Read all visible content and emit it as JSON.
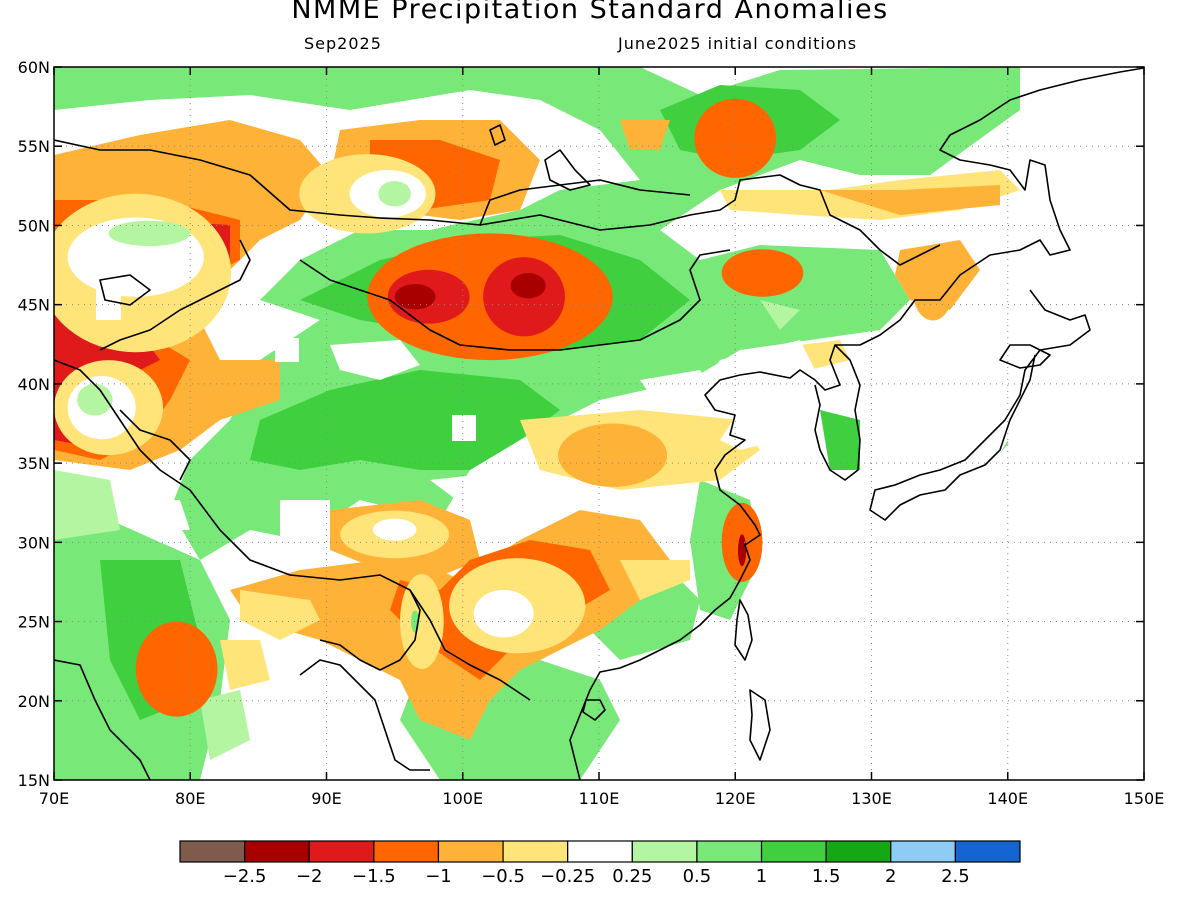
{
  "header": {
    "title": "NMME Precipitation Standard Anomalies",
    "valid_month": "Sep2025",
    "initial_conditions": "June2025 initial conditions"
  },
  "map": {
    "lon_range": [
      70,
      150
    ],
    "lat_range": [
      15,
      60
    ],
    "lon_ticks": [
      "70E",
      "80E",
      "90E",
      "100E",
      "110E",
      "120E",
      "130E",
      "140E",
      "150E"
    ],
    "lat_ticks": [
      "60N",
      "55N",
      "50N",
      "45N",
      "40N",
      "35N",
      "30N",
      "25N",
      "20N",
      "15N"
    ],
    "gridlines": "dotted",
    "anomaly_blobs": [
      {
        "cls": 5,
        "lon": 76,
        "lat": 47,
        "rx": 7,
        "ry": 5
      },
      {
        "cls": 6,
        "lon": 76,
        "lat": 48,
        "rx": 5,
        "ry": 2.5
      },
      {
        "cls": 7,
        "lon": 77,
        "lat": 49.5,
        "rx": 3,
        "ry": 0.8
      },
      {
        "cls": 5,
        "lon": 74,
        "lat": 38.5,
        "rx": 4,
        "ry": 3
      },
      {
        "cls": 6,
        "lon": 73.5,
        "lat": 38.5,
        "rx": 2.5,
        "ry": 2
      },
      {
        "cls": 7,
        "lon": 73,
        "lat": 39,
        "rx": 1.3,
        "ry": 1
      },
      {
        "cls": 5,
        "lon": 93,
        "lat": 52,
        "rx": 5,
        "ry": 2.5
      },
      {
        "cls": 6,
        "lon": 94.5,
        "lat": 52,
        "rx": 2.8,
        "ry": 1.5
      },
      {
        "cls": 7,
        "lon": 95,
        "lat": 52,
        "rx": 1.2,
        "ry": 0.8
      },
      {
        "cls": 5,
        "lon": 95,
        "lat": 30.5,
        "rx": 4,
        "ry": 1.5
      },
      {
        "cls": 6,
        "lon": 95,
        "lat": 30.8,
        "rx": 1.6,
        "ry": 0.7
      },
      {
        "cls": 5,
        "lon": 104,
        "lat": 26,
        "rx": 5,
        "ry": 3
      },
      {
        "cls": 6,
        "lon": 103,
        "lat": 25.5,
        "rx": 2.2,
        "ry": 1.5
      },
      {
        "cls": 5,
        "lon": 97,
        "lat": 25,
        "rx": 1.6,
        "ry": 3
      },
      {
        "cls": 8,
        "lon": 96.5,
        "lat": 25,
        "rx": 0.3,
        "ry": 0.7
      },
      {
        "cls": 4,
        "lon": 111,
        "lat": 35.5,
        "rx": 4,
        "ry": 2
      },
      {
        "cls": 4,
        "lon": 134.5,
        "lat": 46,
        "rx": 1.5,
        "ry": 2
      },
      {
        "cls": 3,
        "lon": 102,
        "lat": 45.5,
        "rx": 9,
        "ry": 4
      },
      {
        "cls": 2,
        "lon": 97.5,
        "lat": 45.5,
        "rx": 3,
        "ry": 1.7
      },
      {
        "cls": 2,
        "lon": 104.5,
        "lat": 45.5,
        "rx": 3,
        "ry": 2.5
      },
      {
        "cls": 1,
        "lon": 96.5,
        "lat": 45.5,
        "rx": 1.5,
        "ry": 0.8
      },
      {
        "cls": 1,
        "lon": 104.8,
        "lat": 46.2,
        "rx": 1.3,
        "ry": 0.8
      },
      {
        "cls": 3,
        "lon": 120,
        "lat": 55.5,
        "rx": 3,
        "ry": 2.5
      },
      {
        "cls": 3,
        "lon": 122,
        "lat": 47,
        "rx": 3,
        "ry": 1.5
      },
      {
        "cls": 3,
        "lon": 79,
        "lat": 22,
        "rx": 3,
        "ry": 3
      },
      {
        "cls": 3,
        "lon": 120.5,
        "lat": 30,
        "rx": 1.5,
        "ry": 2.5
      },
      {
        "cls": 1,
        "lon": 120.5,
        "lat": 29.5,
        "rx": 0.3,
        "ry": 1
      }
    ]
  },
  "colorbar": {
    "colors": [
      "#7f5a4d",
      "#a80000",
      "#e01a1a",
      "#ff6600",
      "#ffb238",
      "#ffe47a",
      "#ffffff",
      "#b3f5a0",
      "#78e878",
      "#3fcf3f",
      "#14a814",
      "#8ecbf5",
      "#1464d2"
    ],
    "labels": [
      "−2.5",
      "−2",
      "−1.5",
      "−1",
      "−0.5",
      "−0.25",
      "0.25",
      "0.5",
      "1",
      "1.5",
      "2",
      "2.5"
    ]
  }
}
